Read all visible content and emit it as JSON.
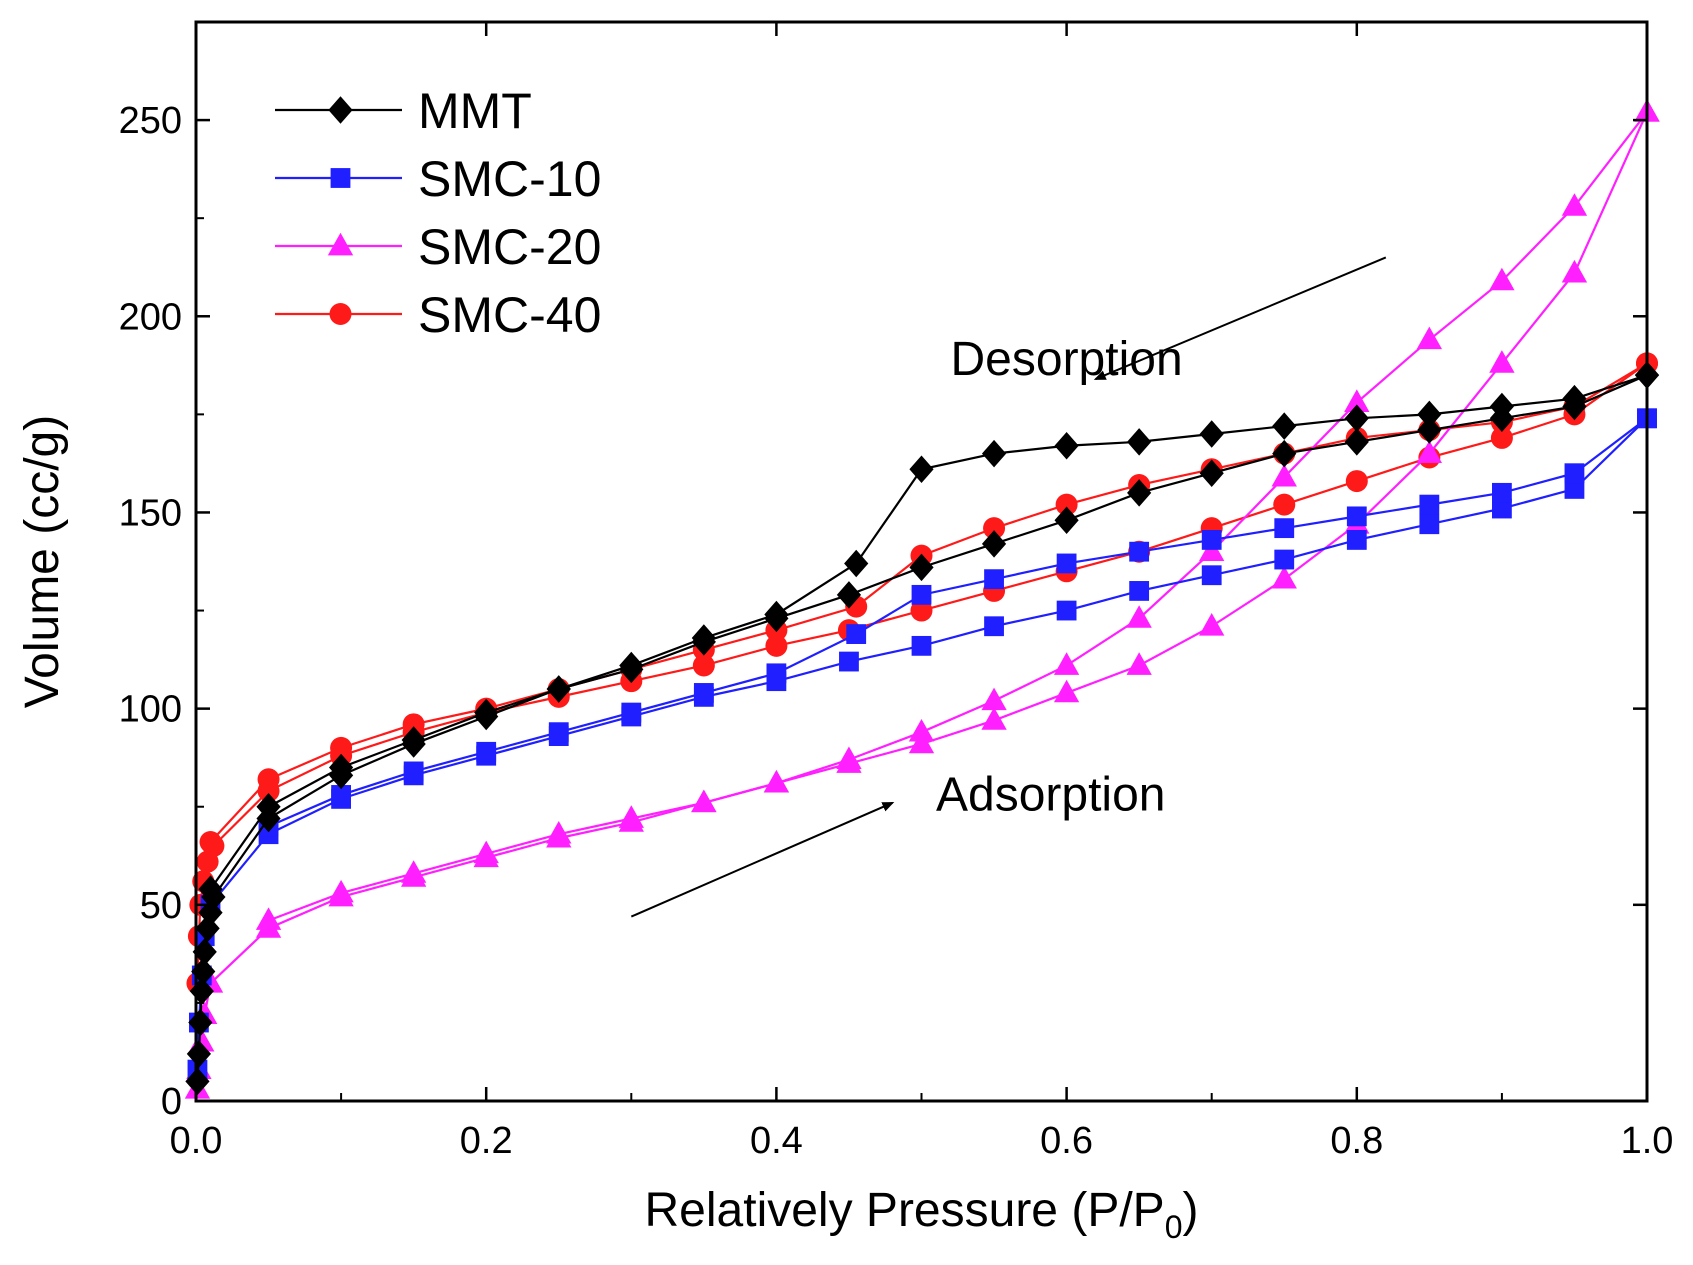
{
  "chart_data": {
    "type": "line",
    "title": "",
    "xlabel_main": "Relatively Pressure (P/P",
    "xlabel_sub": "0",
    "xlabel_end": ")",
    "ylabel": "Volume (cc/g)",
    "xlim": [
      0.0,
      1.0
    ],
    "ylim": [
      0,
      275
    ],
    "xticks": [
      0.0,
      0.2,
      0.4,
      0.6,
      0.8,
      1.0
    ],
    "xtick_labels": [
      "0.0",
      "0.2",
      "0.4",
      "0.6",
      "0.8",
      "1.0"
    ],
    "yticks": [
      0,
      50,
      100,
      150,
      200,
      250
    ],
    "ytick_labels": [
      "0",
      "50",
      "100",
      "150",
      "200",
      "250"
    ],
    "legend_position": "top-left",
    "annotations": [
      {
        "text": "Desorption",
        "x": 0.52,
        "y": 185,
        "arrow_from": [
          0.82,
          215
        ],
        "arrow_to": [
          0.62,
          184
        ]
      },
      {
        "text": "Adsorption",
        "x": 0.51,
        "y": 74,
        "arrow_from": [
          0.3,
          47
        ],
        "arrow_to": [
          0.48,
          76
        ]
      }
    ],
    "series": [
      {
        "name": "MMT",
        "color": "#000000",
        "marker": "diamond",
        "adsorption": {
          "x": [
            0.001,
            0.002,
            0.003,
            0.004,
            0.005,
            0.006,
            0.008,
            0.01,
            0.012,
            0.05,
            0.1,
            0.15,
            0.2,
            0.25,
            0.3,
            0.35,
            0.4,
            0.45,
            0.5,
            0.55,
            0.6,
            0.65,
            0.7,
            0.75,
            0.8,
            0.85,
            0.9,
            0.95,
            1.0
          ],
          "y": [
            5,
            12,
            20,
            28,
            33,
            38,
            44,
            48,
            52,
            72,
            83,
            91,
            98,
            105,
            110,
            117,
            123,
            129,
            136,
            142,
            148,
            155,
            160,
            165,
            168,
            171,
            174,
            177,
            185
          ]
        },
        "desorption": {
          "x": [
            1.0,
            0.95,
            0.9,
            0.85,
            0.8,
            0.75,
            0.7,
            0.65,
            0.6,
            0.55,
            0.5,
            0.455,
            0.4,
            0.35,
            0.3,
            0.25,
            0.2,
            0.15,
            0.1,
            0.05,
            0.01
          ],
          "y": [
            185,
            179,
            177,
            175,
            174,
            172,
            170,
            168,
            167,
            165,
            161,
            137,
            124,
            118,
            111,
            105,
            99,
            92,
            85,
            75,
            54
          ]
        }
      },
      {
        "name": "SMC-10",
        "color": "#1f1fff",
        "marker": "square",
        "adsorption": {
          "x": [
            0.001,
            0.002,
            0.004,
            0.006,
            0.01,
            0.05,
            0.1,
            0.15,
            0.2,
            0.25,
            0.3,
            0.35,
            0.4,
            0.45,
            0.5,
            0.55,
            0.6,
            0.65,
            0.7,
            0.75,
            0.8,
            0.85,
            0.9,
            0.95,
            1.0
          ],
          "y": [
            8,
            20,
            32,
            42,
            50,
            68,
            77,
            83,
            88,
            93,
            98,
            103,
            107,
            112,
            116,
            121,
            125,
            130,
            134,
            138,
            143,
            147,
            151,
            156,
            174
          ]
        },
        "desorption": {
          "x": [
            1.0,
            0.95,
            0.9,
            0.85,
            0.8,
            0.75,
            0.7,
            0.65,
            0.6,
            0.55,
            0.5,
            0.455,
            0.4,
            0.35,
            0.3,
            0.25,
            0.2,
            0.15,
            0.1,
            0.05
          ],
          "y": [
            174,
            160,
            155,
            152,
            149,
            146,
            143,
            140,
            137,
            133,
            129,
            119,
            109,
            104,
            99,
            94,
            89,
            84,
            78,
            70
          ]
        }
      },
      {
        "name": "SMC-20",
        "color": "#ff1fff",
        "marker": "triangle",
        "adsorption": {
          "x": [
            0.001,
            0.002,
            0.004,
            0.006,
            0.01,
            0.05,
            0.1,
            0.15,
            0.2,
            0.25,
            0.3,
            0.35,
            0.4,
            0.45,
            0.5,
            0.55,
            0.6,
            0.65,
            0.7,
            0.75,
            0.8,
            0.85,
            0.9,
            0.95,
            1.0
          ],
          "y": [
            3,
            8,
            15,
            22,
            30,
            44,
            52,
            57,
            62,
            67,
            71,
            76,
            81,
            86,
            91,
            97,
            104,
            111,
            121,
            133,
            147,
            165,
            188,
            211,
            252
          ]
        },
        "desorption": {
          "x": [
            1.0,
            0.95,
            0.9,
            0.85,
            0.8,
            0.75,
            0.7,
            0.65,
            0.6,
            0.55,
            0.5,
            0.45,
            0.4,
            0.35,
            0.3,
            0.25,
            0.2,
            0.15,
            0.1,
            0.05
          ],
          "y": [
            252,
            228,
            209,
            194,
            178,
            159,
            140,
            123,
            111,
            102,
            94,
            87,
            81,
            76,
            72,
            68,
            63,
            58,
            53,
            46
          ]
        }
      },
      {
        "name": "SMC-40",
        "color": "#ff1a1a",
        "marker": "circle",
        "adsorption": {
          "x": [
            0.001,
            0.002,
            0.003,
            0.005,
            0.008,
            0.012,
            0.05,
            0.1,
            0.15,
            0.2,
            0.25,
            0.3,
            0.35,
            0.4,
            0.45,
            0.5,
            0.55,
            0.6,
            0.65,
            0.7,
            0.75,
            0.8,
            0.85,
            0.9,
            0.95,
            1.0
          ],
          "y": [
            30,
            42,
            50,
            56,
            61,
            65,
            79,
            88,
            94,
            99,
            103,
            107,
            111,
            116,
            120,
            125,
            130,
            135,
            140,
            146,
            152,
            158,
            164,
            169,
            175,
            188
          ]
        },
        "desorption": {
          "x": [
            1.0,
            0.95,
            0.9,
            0.85,
            0.8,
            0.75,
            0.7,
            0.65,
            0.6,
            0.55,
            0.5,
            0.455,
            0.4,
            0.35,
            0.3,
            0.25,
            0.2,
            0.15,
            0.1,
            0.05,
            0.01
          ],
          "y": [
            188,
            177,
            173,
            171,
            169,
            165,
            161,
            157,
            152,
            146,
            139,
            126,
            120,
            115,
            110,
            105,
            100,
            96,
            90,
            82,
            66
          ]
        }
      }
    ]
  }
}
